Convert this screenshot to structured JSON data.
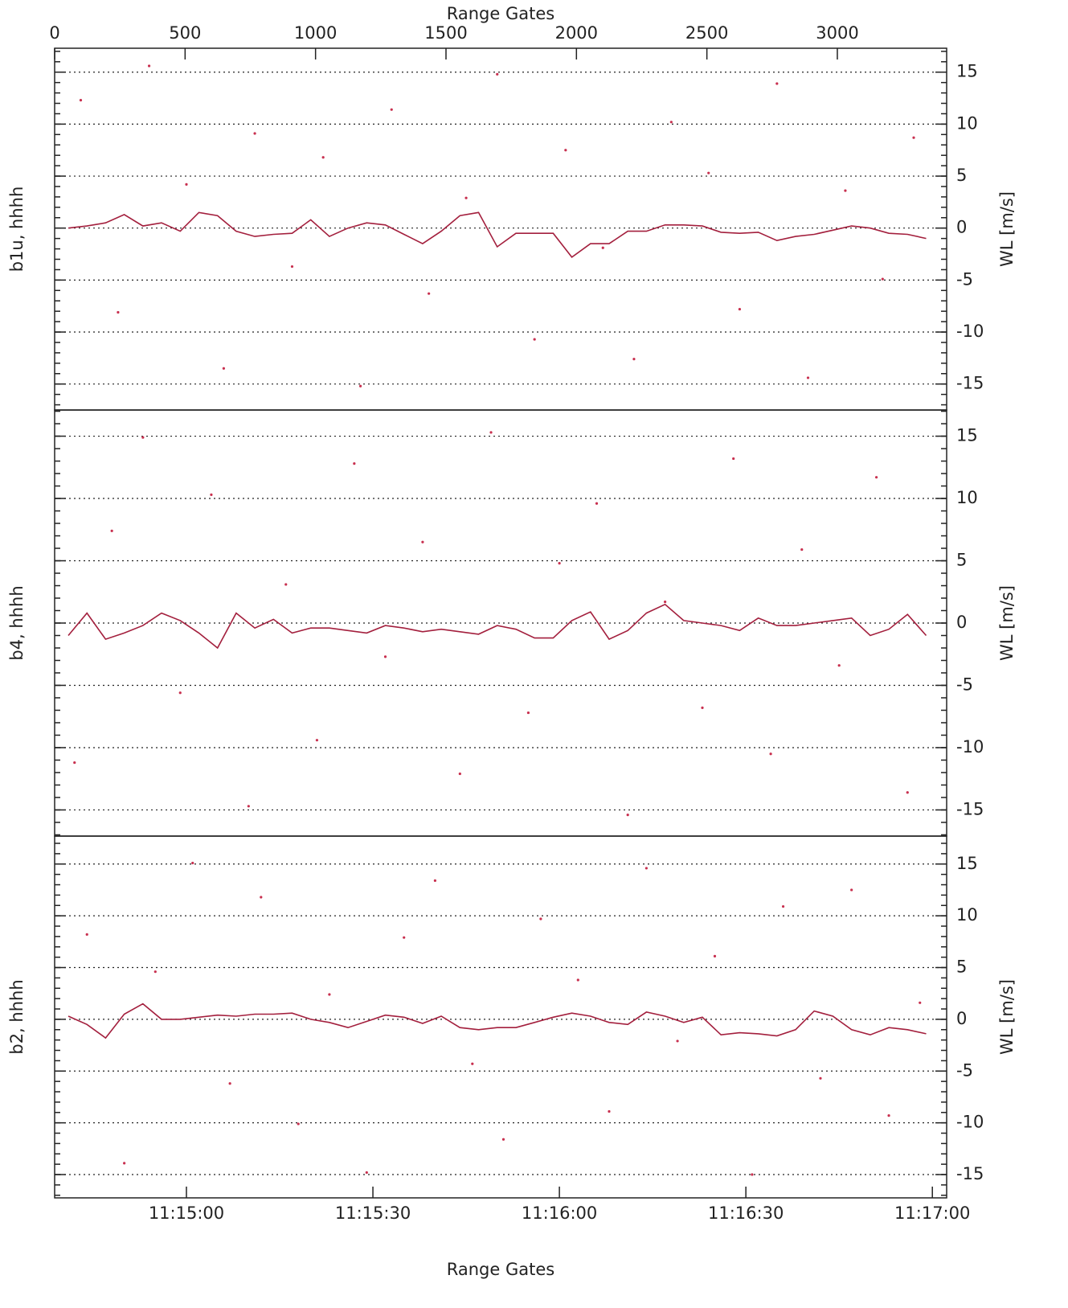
{
  "chart_data": [
    {
      "type": "line",
      "ylabel": "b1u, hhhh",
      "y2label": "WL [m/s]",
      "x2label": "Range Gates",
      "x2lim": [
        0,
        3419
      ],
      "x2ticks": [
        0,
        500,
        1000,
        1500,
        2000,
        2500,
        3000
      ],
      "xlim": [
        40478.8,
        40622.3
      ],
      "ylim": [
        -17.5,
        17.3
      ],
      "yticks": [
        -15,
        -10,
        -5,
        0,
        5,
        10,
        15
      ],
      "grid": true,
      "series": [
        {
          "color": "#a31f3d",
          "x": [
            40481,
            40484,
            40487,
            40490,
            40493,
            40496,
            40499,
            40502,
            40505,
            40508,
            40511,
            40514,
            40517,
            40520,
            40523,
            40526,
            40529,
            40532,
            40535,
            40538,
            40541,
            40544,
            40547,
            40550,
            40553,
            40556,
            40559,
            40562,
            40565,
            40568,
            40571,
            40574,
            40577,
            40580,
            40583,
            40586,
            40589,
            40592,
            40595,
            40598,
            40601,
            40604,
            40607,
            40610,
            40613,
            40616,
            40619
          ],
          "values": [
            0,
            0.2,
            0.5,
            1.3,
            0.2,
            0.5,
            -0.3,
            1.5,
            1.2,
            -0.3,
            -0.8,
            -0.6,
            -0.5,
            0.8,
            -0.8,
            0,
            0.5,
            0.3,
            -0.6,
            -1.5,
            -0.3,
            1.2,
            1.5,
            -1.8,
            -0.5,
            -0.5,
            -0.5,
            -2.8,
            -1.5,
            -1.5,
            -0.3,
            -0.3,
            0.3,
            0.3,
            0.2,
            -0.4,
            -0.5,
            -0.4,
            -1.2,
            -0.8,
            -0.6,
            -0.2,
            0.2,
            0,
            -0.5,
            -0.6,
            -1.0
          ]
        },
        {
          "color": "#c8304f",
          "marker": "dot",
          "x": [
            40483,
            40489,
            40494,
            40500,
            40506,
            40511,
            40517,
            40522,
            40528,
            40533,
            40539,
            40545,
            40550,
            40556,
            40561,
            40567,
            40572,
            40578,
            40584,
            40589,
            40595,
            40600,
            40606,
            40612,
            40617
          ],
          "values": [
            12.3,
            -8.1,
            15.6,
            4.2,
            -13.5,
            9.1,
            -3.7,
            6.8,
            -15.2,
            11.4,
            -6.3,
            2.9,
            14.8,
            -10.7,
            7.5,
            -1.9,
            -12.6,
            10.2,
            5.3,
            -7.8,
            13.9,
            -14.4,
            3.6,
            -4.9,
            8.7
          ]
        }
      ]
    },
    {
      "type": "line",
      "ylabel": "b4, hhhh",
      "y2label": "WL [m/s]",
      "xlim": [
        40478.8,
        40622.3
      ],
      "ylim": [
        -17.1,
        17.1
      ],
      "yticks": [
        -15,
        -10,
        -5,
        0,
        5,
        10,
        15
      ],
      "grid": true,
      "series": [
        {
          "color": "#a31f3d",
          "x": [
            40481,
            40484,
            40487,
            40490,
            40493,
            40496,
            40499,
            40502,
            40505,
            40508,
            40511,
            40514,
            40517,
            40520,
            40523,
            40526,
            40529,
            40532,
            40535,
            40538,
            40541,
            40544,
            40547,
            40550,
            40553,
            40556,
            40559,
            40562,
            40565,
            40568,
            40571,
            40574,
            40577,
            40580,
            40583,
            40586,
            40589,
            40592,
            40595,
            40598,
            40601,
            40604,
            40607,
            40610,
            40613,
            40616,
            40619
          ],
          "values": [
            -1,
            0.8,
            -1.3,
            -0.8,
            -0.2,
            0.8,
            0.2,
            -0.8,
            -2.0,
            0.8,
            -0.4,
            0.3,
            -0.8,
            -0.4,
            -0.4,
            -0.6,
            -0.8,
            -0.2,
            -0.4,
            -0.7,
            -0.5,
            -0.7,
            -0.9,
            -0.2,
            -0.5,
            -1.2,
            -1.2,
            0.2,
            0.9,
            -1.3,
            -0.6,
            0.8,
            1.5,
            0.2,
            0.0,
            -0.2,
            -0.6,
            0.4,
            -0.2,
            -0.2,
            0.0,
            0.2,
            0.4,
            -1.0,
            -0.5,
            0.7,
            -1.0
          ]
        },
        {
          "color": "#c8304f",
          "marker": "dot",
          "x": [
            40482,
            40488,
            40493,
            40499,
            40504,
            40510,
            40516,
            40521,
            40527,
            40532,
            40538,
            40544,
            40549,
            40555,
            40560,
            40566,
            40571,
            40577,
            40583,
            40588,
            40594,
            40599,
            40605,
            40611,
            40616
          ],
          "values": [
            -11.2,
            7.4,
            14.9,
            -5.6,
            10.3,
            -14.7,
            3.1,
            -9.4,
            12.8,
            -2.7,
            6.5,
            -12.1,
            15.3,
            -7.2,
            4.8,
            9.6,
            -15.4,
            1.7,
            -6.8,
            13.2,
            -10.5,
            5.9,
            -3.4,
            11.7,
            -13.6
          ]
        }
      ]
    },
    {
      "type": "line",
      "ylabel": "b2, hhhh",
      "y2label": "WL [m/s]",
      "xlabel": "Range Gates",
      "xlim": [
        40478.8,
        40622.3
      ],
      "xticks": [
        {
          "value": 40500,
          "label": "11:15:00"
        },
        {
          "value": 40530,
          "label": "11:15:30"
        },
        {
          "value": 40560,
          "label": "11:16:00"
        },
        {
          "value": 40590,
          "label": "11:16:30"
        },
        {
          "value": 40620,
          "label": "11:17:00"
        }
      ],
      "ylim": [
        -17.25,
        17.7
      ],
      "yticks": [
        -15,
        -10,
        -5,
        0,
        5,
        10,
        15
      ],
      "grid": true,
      "series": [
        {
          "color": "#a31f3d",
          "x": [
            40481,
            40484,
            40487,
            40490,
            40493,
            40496,
            40499,
            40502,
            40505,
            40508,
            40511,
            40514,
            40517,
            40520,
            40523,
            40526,
            40529,
            40532,
            40535,
            40538,
            40541,
            40544,
            40547,
            40550,
            40553,
            40556,
            40559,
            40562,
            40565,
            40568,
            40571,
            40574,
            40577,
            40580,
            40583,
            40586,
            40589,
            40592,
            40595,
            40598,
            40601,
            40604,
            40607,
            40610,
            40613,
            40616,
            40619
          ],
          "values": [
            0.3,
            -0.5,
            -1.8,
            0.5,
            1.5,
            0.0,
            0.0,
            0.2,
            0.4,
            0.3,
            0.5,
            0.5,
            0.6,
            0.0,
            -0.3,
            -0.8,
            -0.2,
            0.4,
            0.2,
            -0.4,
            0.3,
            -0.8,
            -1.0,
            -0.8,
            -0.8,
            -0.3,
            0.2,
            0.6,
            0.3,
            -0.3,
            -0.5,
            0.7,
            0.3,
            -0.3,
            0.2,
            -1.5,
            -1.3,
            -1.4,
            -1.6,
            -1.0,
            0.8,
            0.3,
            -1.0,
            -1.5,
            -0.8,
            -1.0,
            -1.4
          ]
        },
        {
          "color": "#c8304f",
          "marker": "dot",
          "x": [
            40484,
            40490,
            40495,
            40501,
            40507,
            40512,
            40518,
            40523,
            40529,
            40535,
            40540,
            40546,
            40551,
            40557,
            40563,
            40568,
            40574,
            40579,
            40585,
            40591,
            40596,
            40602,
            40607,
            40613,
            40618
          ],
          "values": [
            8.2,
            -13.9,
            4.6,
            15.1,
            -6.2,
            11.8,
            -10.1,
            2.4,
            -14.8,
            7.9,
            13.4,
            -4.3,
            -11.6,
            9.7,
            3.8,
            -8.9,
            14.6,
            -2.1,
            6.1,
            -15.0,
            10.9,
            -5.7,
            12.5,
            -9.3,
            1.6
          ]
        }
      ]
    }
  ]
}
